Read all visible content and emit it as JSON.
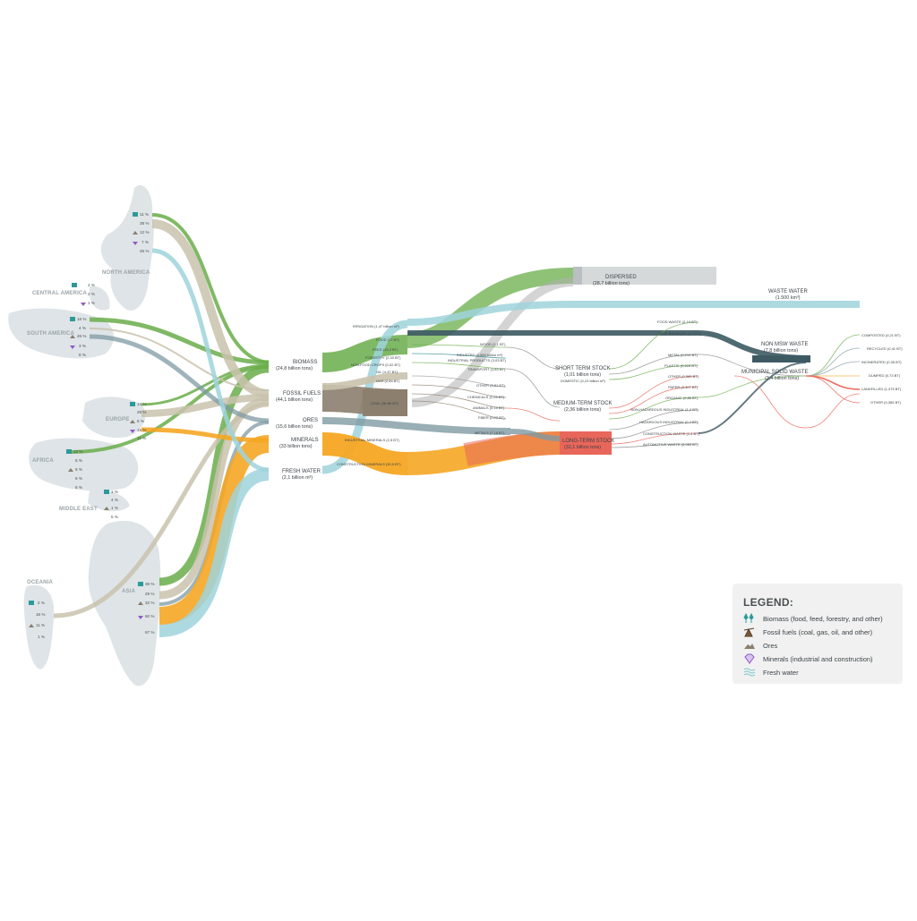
{
  "colors": {
    "biomass": "#6aad4a",
    "fossil": "#c9c2ad",
    "fossil_dark": "#8b7e6e",
    "ores": "#7f9aa3",
    "minerals": "#f5a623",
    "water": "#9fd4dc",
    "dispersed": "#9aa0a3",
    "waste_dark": "#3d5a63",
    "long_term": "#e8665a",
    "map": "#dde3e6"
  },
  "regions": [
    {
      "name": "NORTH AMERICA",
      "stats": [
        "11 %",
        "38 %",
        "12 %",
        "7 %",
        "25 %"
      ]
    },
    {
      "name": "CENTRAL AMERICA",
      "stats": [
        "2 %",
        "2 %",
        "1 %"
      ]
    },
    {
      "name": "SOUTH AMERICA",
      "stats": [
        "16 %",
        "4 %",
        "26 %",
        "3 %",
        "8 %"
      ]
    },
    {
      "name": "EUROPE",
      "stats": [
        "13 %",
        "29 %",
        "8 %",
        "15 %",
        "11 %"
      ]
    },
    {
      "name": "AFRICA",
      "stats": [
        "12 %",
        "6 %",
        "6 %",
        "6 %",
        "6 %"
      ]
    },
    {
      "name": "MIDDLE EAST",
      "stats": [
        "1 %",
        "4 %",
        "1 %",
        "5 %"
      ]
    },
    {
      "name": "OCEANIA",
      "stats": [
        "2 %",
        "16 %",
        "11 %",
        "1 %"
      ]
    },
    {
      "name": "ASIA",
      "stats": [
        "39 %",
        "29 %",
        "32 %",
        "60 %",
        "67 %"
      ]
    }
  ],
  "sources": [
    {
      "key": "biomass",
      "title": "BIOMASS",
      "value": "(24,8 billion tons)"
    },
    {
      "key": "fossil",
      "title": "FOSSIL FUELS",
      "value": "(44,1 billion tons)"
    },
    {
      "key": "ores",
      "title": "ORES",
      "value": "(15,6 billion tons)"
    },
    {
      "key": "minerals",
      "title": "MINERALS",
      "value": "(33 billion tons)"
    },
    {
      "key": "water",
      "title": "FRESH WATER",
      "value": "(2,1 billion m³)"
    }
  ],
  "streams": {
    "irrigation": "IRRIGATION (1,47 billion m³)",
    "food": "FOOD (17 BT)",
    "feed": "FEED (15,3 BT)",
    "forestry": "FORESTRY (2,33 BT)",
    "nonfood": "NON-FOOD CROPS (0,02 BT)",
    "oil": "OIL (4,37 BT)",
    "gas": "GAS (2,84 BT)",
    "coal": "COAL (36,89 BT)",
    "ind_minerals": "INDUSTRIAL MINERALS (2,5 BT)",
    "constr_minerals": "CONSTRUCTION MINERALS (30,5 BT)"
  },
  "products": {
    "wood": "WOOD (1,1 BT)",
    "industry": "INDUSTRY (0,599 billion m³)",
    "industrial_products": "INDUSTRIAL PRODUCTS (3,03 BT)",
    "transport": "TRANSPORT (1,83 BT)",
    "other": "OTHER (5,51 BT)",
    "chemicals": "CHEMICALS (1,03 BT)",
    "animals": "ANIMALS (0,15 BT)",
    "fiber": "FIBER (0,03 BT)",
    "metals": "METALS (7,18 BT)",
    "domestic": "DOMESTIC (0,23 billion m³)",
    "crop_residues": "CROP RESIDUES (4,7 BT)"
  },
  "stocks": {
    "dispersed_title": "DISPERSED",
    "dispersed_value": "(28,7 billion tons)",
    "wastewater_title": "WASTE WATER",
    "wastewater_value": "(1.500 km³)",
    "short_title": "SHORT TERM STOCK",
    "short_value": "(1,01 billion tons)",
    "medium_title": "MEDIUM-TERM STOCK",
    "medium_value": "(2,36 billion tons)",
    "long_title": "LONG-TERM STOCK",
    "long_value": "(32,1 billion tons)"
  },
  "waste": {
    "food_waste": "FOOD WASTE (2,19 BT)",
    "metal": "METAL (0,210 BT)",
    "plastic": "PLASTIC (0,226 BT)",
    "other": "OTHER (0,365 BT)",
    "paper": "PAPER (0,407 BT)",
    "organic": "ORGANIC (0,88 BT)",
    "nonhaz": "NON-HAZARDOUS INDUSTRIAL (1,2 BT)",
    "haz": "HAZARDOUS INDUSTRIAL (0,4 BT)",
    "construction": "CONSTRUCTION WASTE (1,4 BT)",
    "automotive": "AUTOMOTIVE WASTE (0,083 BT)",
    "nonmsw_title": "NON MSW WASTE",
    "nonmsw_value": "(7,8 billion tons)",
    "msw_title": "MUNICIPAL SOLID WASTE",
    "msw_value": "(3,4 billion tons)"
  },
  "treatment": [
    "COMPOSTED (0,21 BT)",
    "RECYCLED (0,41 BT)",
    "INCINERATED (0,35 BT)",
    "DUMPED (0,73 BT)",
    "LANDFILLED (1,375 BT)",
    "OTHER (0,365 BT)"
  ],
  "legend": {
    "title": "LEGEND:",
    "items": [
      {
        "icon": "tree-icon",
        "label": "Biomass (food, feed, forestry, and other)"
      },
      {
        "icon": "oil-pump-icon",
        "label": "Fossil fuels (coal, gas, oil, and other)"
      },
      {
        "icon": "ore-mound-icon",
        "label": "Ores"
      },
      {
        "icon": "gem-icon",
        "label": "Minerals (industrial and construction)"
      },
      {
        "icon": "water-waves-icon",
        "label": "Fresh water"
      }
    ]
  }
}
